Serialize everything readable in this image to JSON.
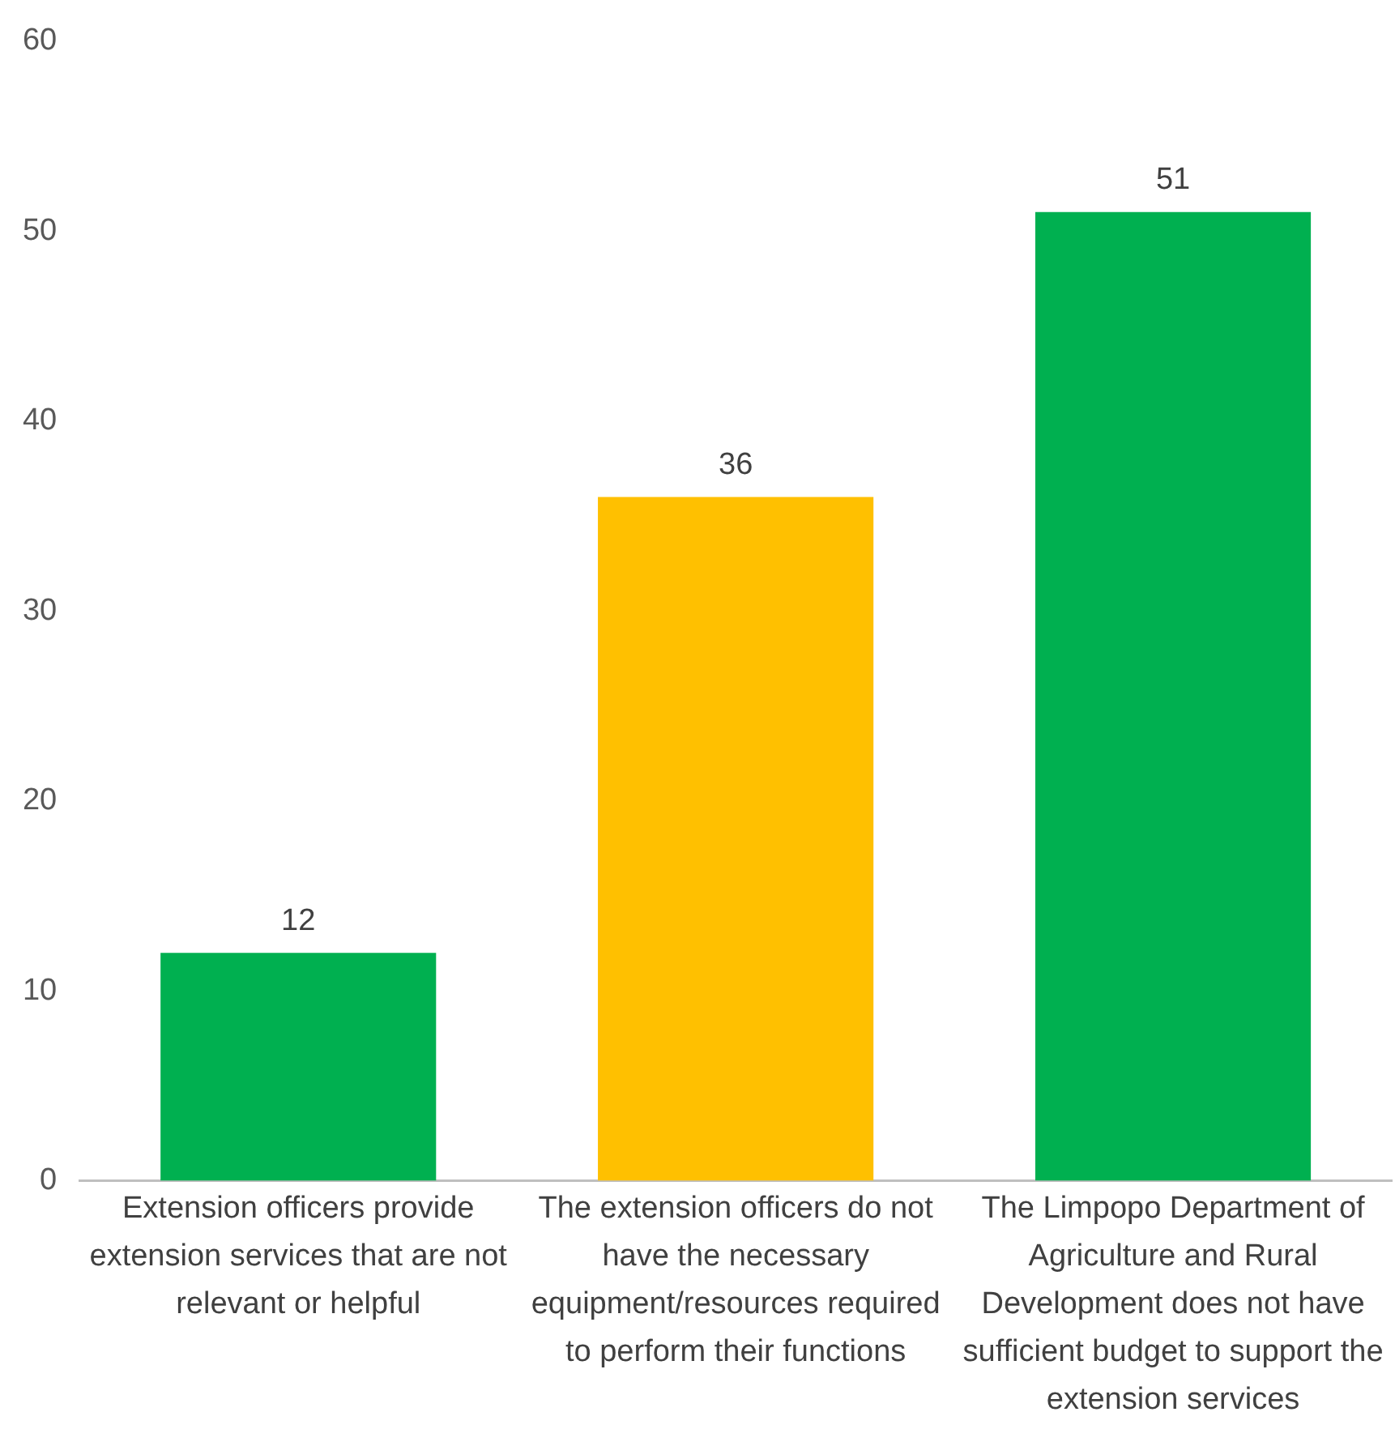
{
  "chart_data": {
    "type": "bar",
    "categories": [
      "Extension officers provide extension services that are not relevant or helpful",
      "The extension officers do not have the necessary equipment/resources required to perform their functions",
      "The Limpopo Department of Agriculture and Rural Development does not have sufficient budget to support the extension services"
    ],
    "values": [
      12,
      36,
      51
    ],
    "colors": [
      "#00b050",
      "#ffc000",
      "#00b050"
    ],
    "ylim": [
      0,
      60
    ],
    "yticks": [
      0,
      10,
      20,
      30,
      40,
      50,
      60
    ],
    "data_labels": true,
    "grid": false,
    "legend": false
  }
}
